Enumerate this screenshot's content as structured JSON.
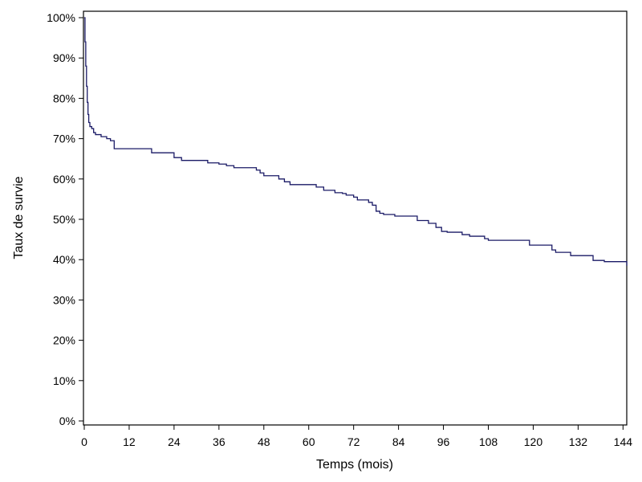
{
  "chart_data": {
    "type": "line",
    "title": "",
    "xlabel": "Temps (mois)",
    "ylabel": "Taux de survie",
    "xlim": [
      0,
      145
    ],
    "ylim": [
      0,
      100
    ],
    "x_ticks": [
      0,
      12,
      24,
      36,
      48,
      60,
      72,
      84,
      96,
      108,
      120,
      132,
      144
    ],
    "y_ticks": [
      "0%",
      "10%",
      "20%",
      "30%",
      "40%",
      "50%",
      "60%",
      "70%",
      "80%",
      "90%",
      "100%"
    ],
    "grid": false,
    "legend": "none",
    "line_color": "#1a1a66",
    "series": [
      {
        "step": true,
        "x": [
          0,
          0.2,
          0.4,
          0.6,
          0.8,
          1.0,
          1.2,
          1.5,
          2.0,
          2.5,
          3.0,
          4.5,
          6.0,
          7.0,
          8.0,
          13.0,
          18.0,
          23.0,
          24.0,
          26.0,
          33.0,
          36.0,
          38.0,
          40.0,
          46.0,
          47.0,
          48.0,
          52.0,
          53.5,
          55.0,
          62.0,
          64.0,
          67.0,
          69.0,
          70.0,
          72.0,
          73.0,
          76.0,
          77.0,
          78.0,
          79.0,
          80.0,
          83.0,
          89.0,
          92.0,
          94.0,
          95.5,
          97.0,
          101.0,
          103.0,
          107.0,
          108.0,
          116.0,
          119.0,
          125.0,
          126.0,
          130.0,
          136.0,
          139.0,
          145.0
        ],
        "y": [
          100,
          94,
          88,
          83,
          79,
          76,
          74,
          73,
          72.5,
          71.5,
          71,
          70.5,
          70,
          69.5,
          67.5,
          67.5,
          66.5,
          66.5,
          65.3,
          64.6,
          64,
          63.7,
          63.3,
          62.8,
          62.2,
          61.5,
          60.8,
          60,
          59.3,
          58.6,
          58,
          57.2,
          56.6,
          56.4,
          56,
          55.5,
          54.8,
          54.2,
          53.5,
          52,
          51.5,
          51.2,
          50.8,
          49.7,
          49,
          48,
          47,
          46.8,
          46.2,
          45.8,
          45.2,
          44.8,
          44.8,
          43.6,
          42.4,
          41.8,
          41,
          39.8,
          39.5,
          38.5
        ]
      }
    ]
  }
}
